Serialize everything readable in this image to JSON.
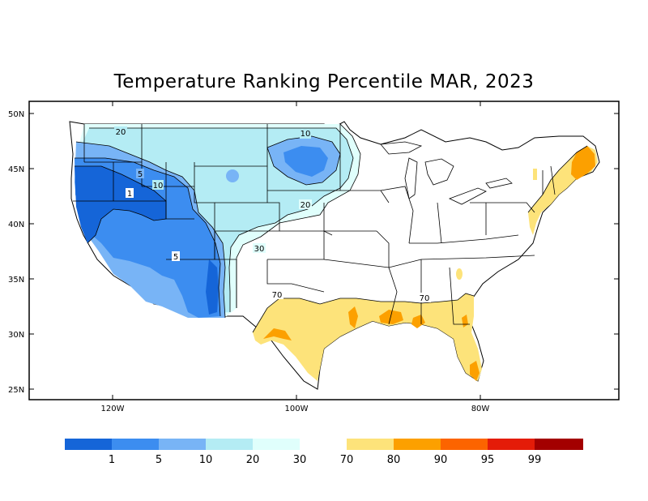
{
  "title": "Temperature Ranking Percentile MAR, 2023",
  "colors": {
    "b1": "#1565d8",
    "b5": "#3c8df0",
    "b10": "#78b4f6",
    "b20": "#b4ecf4",
    "b30": "#e0fffc",
    "w70": "#fde37a",
    "w80": "#fca000",
    "w90": "#fc6400",
    "w95": "#e41c08",
    "w99": "#a30000"
  },
  "axes": {
    "lat_ticks": [
      "50N",
      "45N",
      "40N",
      "35N",
      "30N",
      "25N"
    ],
    "lon_ticks": [
      "120W",
      "100W",
      "80W"
    ]
  },
  "legend": {
    "labels": [
      "1",
      "5",
      "10",
      "20",
      "30",
      "70",
      "80",
      "90",
      "95",
      "99"
    ]
  },
  "contour_labels": [
    "20",
    "10",
    "5",
    "10",
    "1",
    "5",
    "20",
    "30",
    "70",
    "70"
  ]
}
